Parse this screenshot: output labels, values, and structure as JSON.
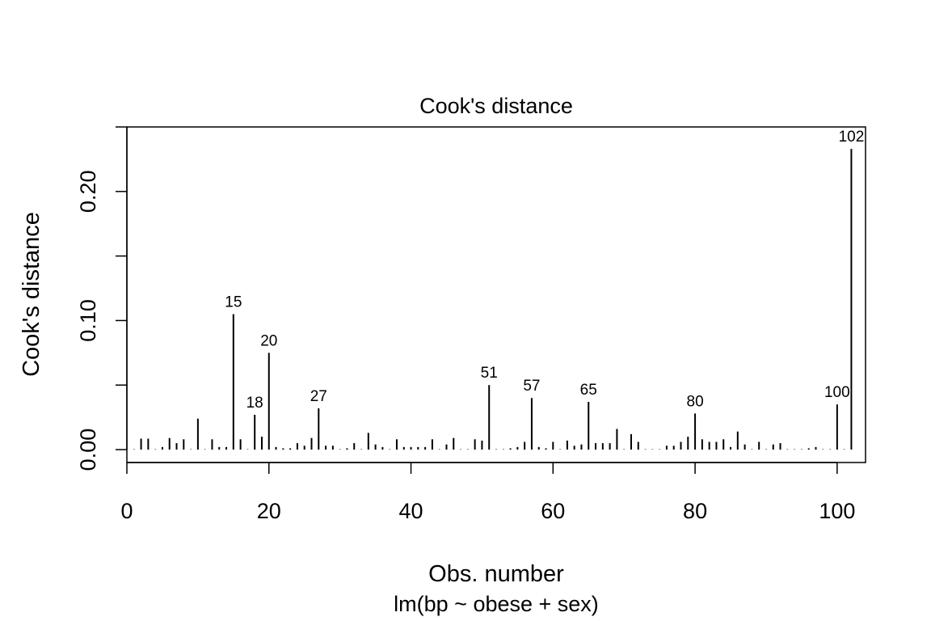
{
  "chart_data": {
    "type": "bar",
    "title": "Cook's distance",
    "xlabel": "Obs. number",
    "ylabel": "Cook's distance",
    "subtitle": "lm(bp ~ obese + sex)",
    "xlim": [
      0,
      104
    ],
    "ylim": [
      -0.01,
      0.25
    ],
    "x_ticks": [
      0,
      20,
      40,
      60,
      80,
      100
    ],
    "y_ticks": [
      0.0,
      0.05,
      0.1,
      0.15,
      0.2,
      0.25
    ],
    "y_tick_labels": [
      {
        "value": 0.0,
        "label": "0.00"
      },
      {
        "value": 0.1,
        "label": "0.10"
      },
      {
        "value": 0.2,
        "label": "0.20"
      }
    ],
    "x": [
      1,
      2,
      3,
      4,
      5,
      6,
      7,
      8,
      9,
      10,
      11,
      12,
      13,
      14,
      15,
      16,
      17,
      18,
      19,
      20,
      21,
      22,
      23,
      24,
      25,
      26,
      27,
      28,
      29,
      30,
      31,
      32,
      33,
      34,
      35,
      36,
      37,
      38,
      39,
      40,
      41,
      42,
      43,
      44,
      45,
      46,
      47,
      48,
      49,
      50,
      51,
      52,
      53,
      54,
      55,
      56,
      57,
      58,
      59,
      60,
      61,
      62,
      63,
      64,
      65,
      66,
      67,
      68,
      69,
      70,
      71,
      72,
      73,
      74,
      75,
      76,
      77,
      78,
      79,
      80,
      81,
      82,
      83,
      84,
      85,
      86,
      87,
      88,
      89,
      90,
      91,
      92,
      93,
      94,
      95,
      96,
      97,
      98,
      99,
      100,
      101,
      102
    ],
    "values": [
      0.0003,
      0.0085,
      0.0085,
      0.0003,
      0.002,
      0.009,
      0.005,
      0.008,
      0.0003,
      0.024,
      0.0003,
      0.008,
      0.002,
      0.002,
      0.105,
      0.008,
      0.0003,
      0.027,
      0.01,
      0.075,
      0.002,
      0.001,
      0.001,
      0.005,
      0.003,
      0.009,
      0.032,
      0.003,
      0.003,
      0.0003,
      0.001,
      0.005,
      0.0003,
      0.013,
      0.004,
      0.002,
      0.0003,
      0.008,
      0.002,
      0.002,
      0.002,
      0.002,
      0.008,
      0.0003,
      0.004,
      0.009,
      0.0003,
      0.0003,
      0.008,
      0.007,
      0.05,
      0.0003,
      0.0003,
      0.001,
      0.002,
      0.006,
      0.04,
      0.002,
      0.001,
      0.006,
      0.0003,
      0.007,
      0.003,
      0.004,
      0.037,
      0.005,
      0.005,
      0.005,
      0.016,
      0.0003,
      0.012,
      0.006,
      0.0003,
      0.0003,
      0.0003,
      0.003,
      0.003,
      0.006,
      0.01,
      0.028,
      0.008,
      0.006,
      0.006,
      0.008,
      0.002,
      0.014,
      0.004,
      0.0003,
      0.006,
      0.0003,
      0.004,
      0.005,
      0.0003,
      0.0003,
      0.0003,
      0.001,
      0.002,
      0.0003,
      0.0003,
      0.035,
      0.0003,
      0.233
    ],
    "labeled_points": [
      {
        "x": 15,
        "label": "15"
      },
      {
        "x": 18,
        "label": "18"
      },
      {
        "x": 20,
        "label": "20"
      },
      {
        "x": 27,
        "label": "27"
      },
      {
        "x": 51,
        "label": "51"
      },
      {
        "x": 57,
        "label": "57"
      },
      {
        "x": 65,
        "label": "65"
      },
      {
        "x": 80,
        "label": "80"
      },
      {
        "x": 100,
        "label": "100"
      },
      {
        "x": 102,
        "label": "102"
      }
    ],
    "grid": false,
    "legend": "none"
  }
}
